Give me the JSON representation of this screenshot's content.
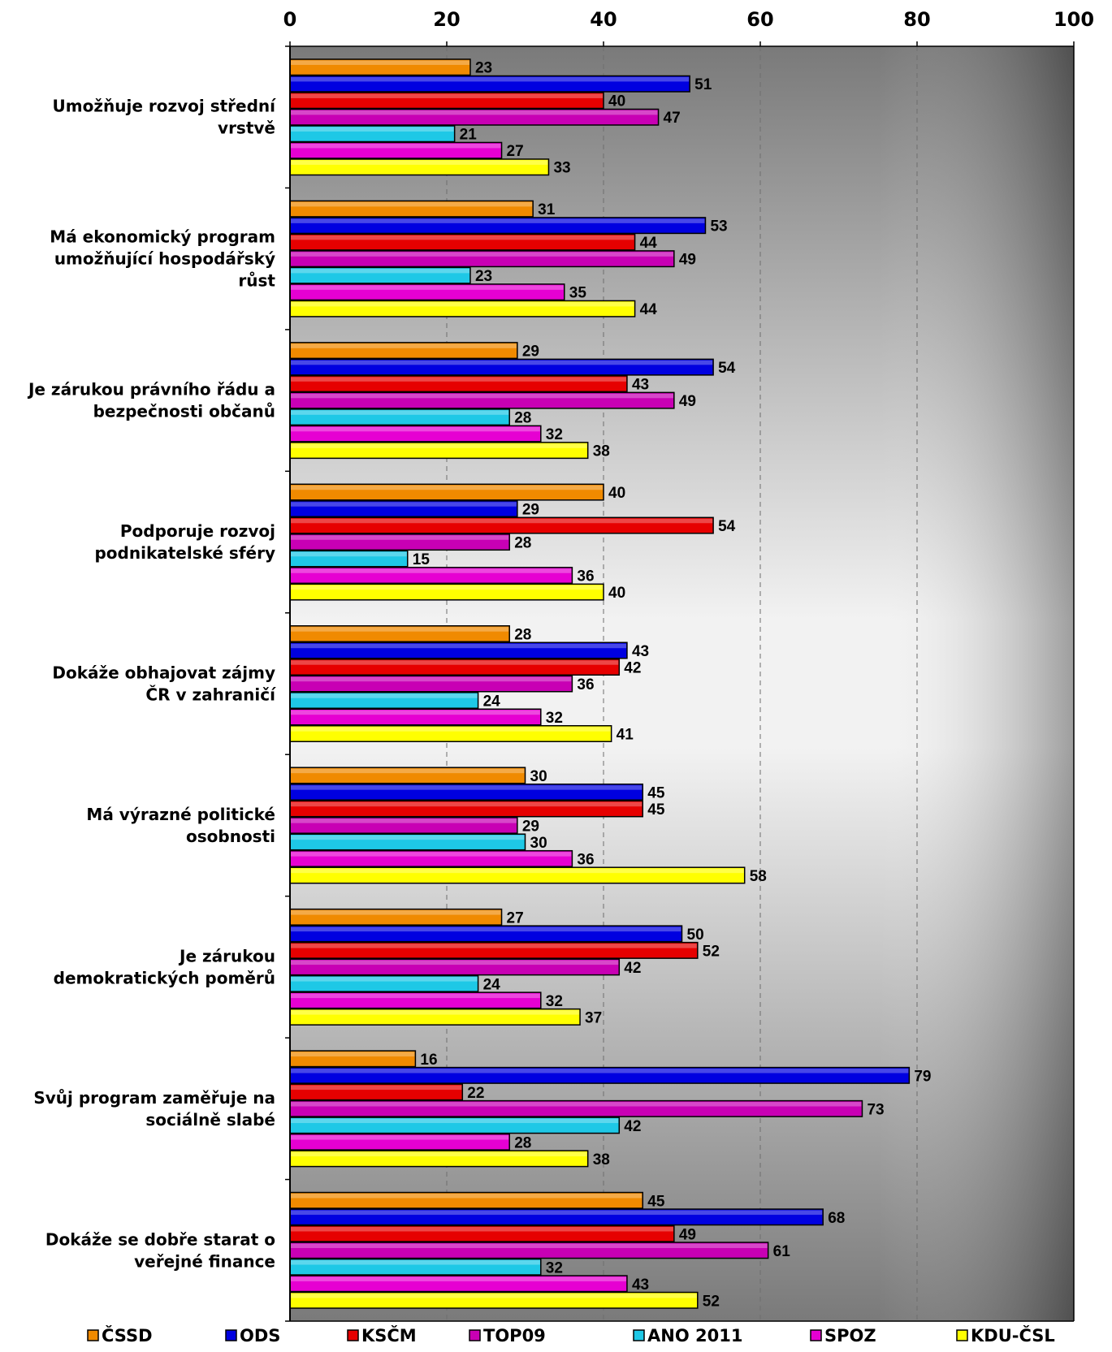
{
  "chart_data": {
    "type": "bar",
    "orientation": "horizontal",
    "title": "",
    "xlabel": "",
    "ylabel": "",
    "xlim": [
      0,
      100
    ],
    "x_ticks": [
      "0",
      "20",
      "40",
      "60",
      "80",
      "100"
    ],
    "x_tick_values": [
      0,
      20,
      40,
      60,
      80,
      100
    ],
    "grid": "vertical dashed",
    "legend_position": "bottom",
    "categories": [
      [
        "Umožňuje rozvoj střední",
        "vrstvě"
      ],
      [
        "Má ekonomický program",
        "umožňující hospodářský",
        "růst"
      ],
      [
        "Je zárukou právního řádu a",
        "bezpečnosti občanů"
      ],
      [
        "Podporuje rozvoj",
        "podnikatelské sféry"
      ],
      [
        "Dokáže obhajovat zájmy",
        "ČR v zahraničí"
      ],
      [
        "Má výrazné politické",
        "osobnosti"
      ],
      [
        "Je zárukou",
        "demokratických poměrů"
      ],
      [
        "Svůj program zaměřuje na",
        "sociálně slabé"
      ],
      [
        "Dokáže se dobře starat o",
        "veřejné finance"
      ]
    ],
    "series": [
      {
        "name": "ČSSD",
        "color": "#f08a00",
        "values": [
          23,
          31,
          29,
          40,
          28,
          30,
          27,
          16,
          45
        ]
      },
      {
        "name": "ODS",
        "color": "#0000e0",
        "values": [
          51,
          53,
          54,
          29,
          43,
          45,
          50,
          79,
          68
        ]
      },
      {
        "name": "KSČM",
        "color": "#e60000",
        "values": [
          40,
          44,
          43,
          54,
          42,
          45,
          52,
          22,
          49
        ]
      },
      {
        "name": "TOP09",
        "color": "#c800b4",
        "values": [
          47,
          49,
          49,
          28,
          36,
          29,
          42,
          73,
          61
        ]
      },
      {
        "name": "ANO 2011",
        "color": "#1ec8e6",
        "values": [
          21,
          23,
          28,
          15,
          24,
          30,
          24,
          42,
          32
        ]
      },
      {
        "name": "SPOZ",
        "color": "#e600d2",
        "values": [
          27,
          35,
          32,
          36,
          32,
          36,
          32,
          28,
          43
        ]
      },
      {
        "name": "KDU-ČSL",
        "color": "#ffff00",
        "values": [
          33,
          44,
          38,
          40,
          41,
          58,
          37,
          38,
          52
        ]
      }
    ]
  }
}
